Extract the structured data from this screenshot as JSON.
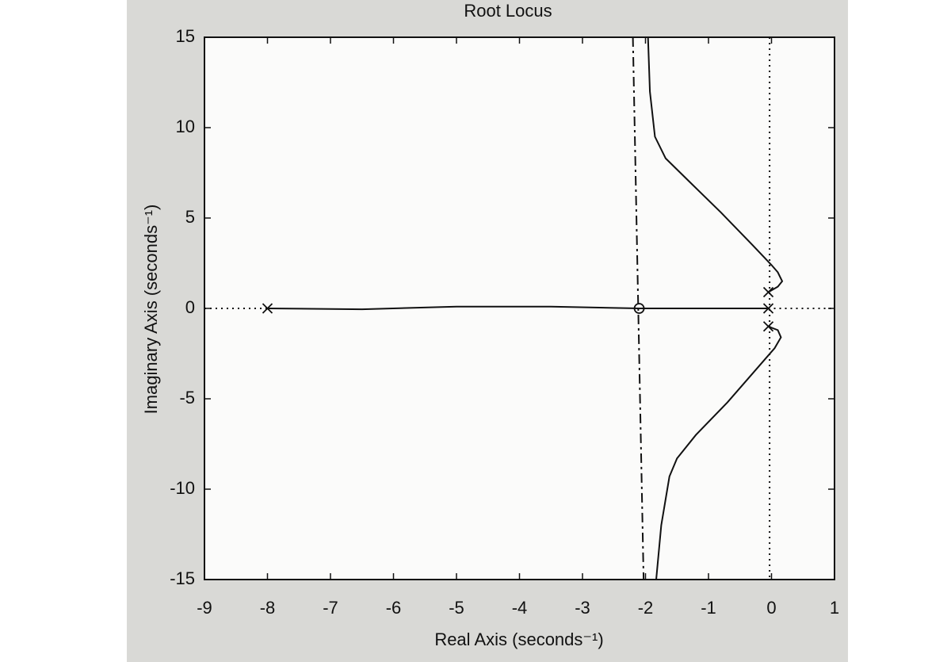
{
  "chart_data": {
    "type": "root-locus",
    "title": "Root Locus",
    "xlabel": "Real Axis (seconds⁻¹)",
    "ylabel": "Imaginary Axis (seconds⁻¹)",
    "xlim": [
      -9,
      1
    ],
    "ylim": [
      -15,
      15
    ],
    "xticks": [
      -9,
      -8,
      -7,
      -6,
      -5,
      -4,
      -3,
      -2,
      -1,
      0,
      1
    ],
    "yticks": [
      -15,
      -10,
      -5,
      0,
      5,
      10,
      15
    ],
    "series": [
      {
        "color": "#111111",
        "style": "solid",
        "x": [
          -0.05,
          0.1,
          0.17,
          0.1,
          0.0,
          -0.3,
          -0.8,
          -1.3,
          -1.68,
          -1.85,
          -1.93,
          -1.96
        ],
        "y": [
          0.9,
          1.2,
          1.5,
          2.0,
          2.4,
          3.5,
          5.3,
          7.0,
          8.3,
          9.5,
          12,
          15
        ]
      },
      {
        "color": "#111111",
        "style": "solid",
        "x": [
          -0.05,
          0.1,
          0.15,
          0.05,
          -0.1,
          -0.7,
          -1.2,
          -1.5,
          -1.62,
          -1.75,
          -1.83
        ],
        "y": [
          -1.0,
          -1.2,
          -1.6,
          -2.2,
          -2.8,
          -5.2,
          -7.0,
          -8.3,
          -9.3,
          -12,
          -15
        ]
      },
      {
        "color": "#111111",
        "style": "solid",
        "x": [
          -8,
          -6.5,
          -5,
          -3.5,
          -2.1
        ],
        "y": [
          0,
          -0.05,
          0.1,
          0.1,
          0
        ]
      },
      {
        "color": "#111111",
        "style": "solid",
        "x": [
          -2.1,
          -1,
          -0.05
        ],
        "y": [
          0,
          0,
          0
        ]
      },
      {
        "color": "#111111",
        "style": "dash-dot",
        "x": [
          -2.2,
          -2.03
        ],
        "y": [
          15,
          -15
        ]
      },
      {
        "color": "#111111",
        "style": "dotted",
        "x": [
          -0.03,
          -0.03
        ],
        "y": [
          15,
          -15
        ]
      },
      {
        "color": "#111111",
        "style": "dotted",
        "x": [
          -9,
          -8
        ],
        "y": [
          0,
          0
        ]
      },
      {
        "color": "#111111",
        "style": "dotted",
        "x": [
          -0.05,
          1
        ],
        "y": [
          0,
          0
        ]
      }
    ],
    "poles": {
      "x": [
        -8,
        -0.05,
        -0.05,
        -0.05
      ],
      "y": [
        0,
        0.9,
        0,
        -1.0
      ]
    },
    "zeros": {
      "x": [
        -2.1
      ],
      "y": [
        0
      ]
    }
  }
}
